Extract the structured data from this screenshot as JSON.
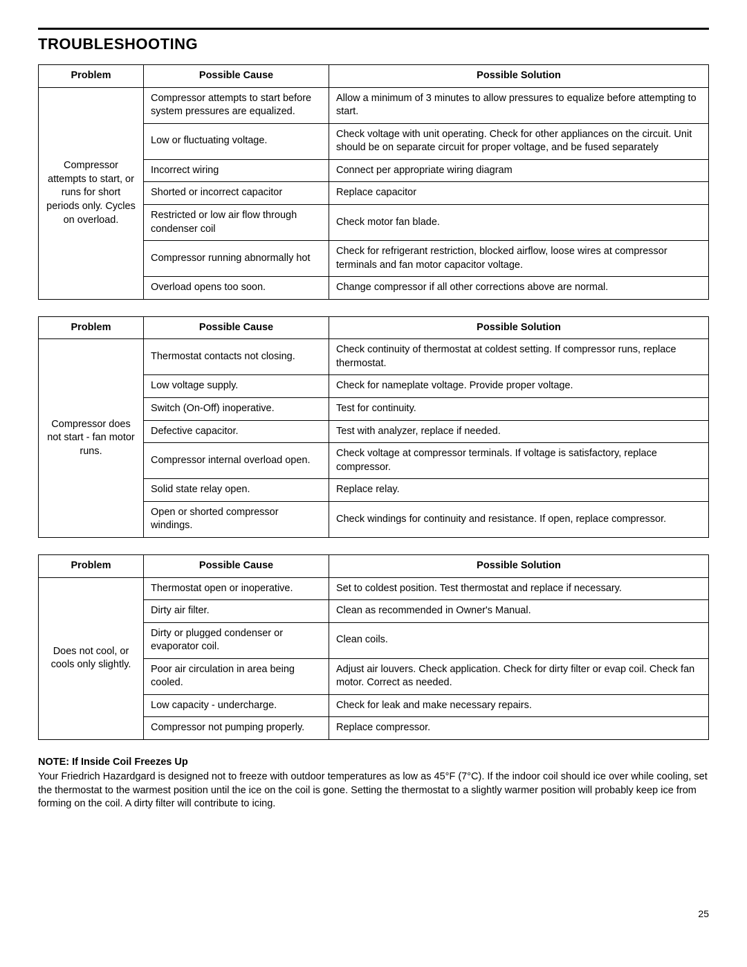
{
  "heading": "TROUBLESHOOTING",
  "columns": {
    "problem": "Problem",
    "cause": "Possible Cause",
    "solution": "Possible Solution"
  },
  "tables": [
    {
      "problem": "Compressor attempts to start, or runs for short periods only. Cycles on overload.",
      "rows": [
        {
          "cause": "Compressor attempts to start before system pressures are equalized.",
          "solution": "Allow a minimum of 3 minutes to allow pressures to equalize before attempting to start."
        },
        {
          "cause": "Low or fluctuating voltage.",
          "solution": "Check voltage with unit operating. Check for other appliances on the circuit. Unit should be on separate circuit for proper voltage, and be fused separately"
        },
        {
          "cause": "Incorrect wiring",
          "solution": "Connect per appropriate wiring diagram"
        },
        {
          "cause": "Shorted or incorrect capacitor",
          "solution": "Replace capacitor"
        },
        {
          "cause": "Restricted or low air flow through condenser coil",
          "solution": "Check motor fan blade."
        },
        {
          "cause": "Compressor running abnormally hot",
          "solution": "Check for refrigerant restriction, blocked airflow, loose wires at compressor terminals  and fan motor capacitor voltage."
        },
        {
          "cause": "Overload opens too soon.",
          "solution": "Change compressor if all other corrections above are normal."
        }
      ]
    },
    {
      "problem": "Compressor does not start - fan motor runs.",
      "rows": [
        {
          "cause": "Thermostat contacts not closing.",
          "solution": "Check continuity of thermostat at coldest setting. If compressor runs, replace thermostat."
        },
        {
          "cause": "Low voltage supply.",
          "solution": "Check for nameplate voltage. Provide proper voltage."
        },
        {
          "cause": "Switch (On-Off) inoperative.",
          "solution": "Test for continuity."
        },
        {
          "cause": "Defective capacitor.",
          "solution": "Test with analyzer, replace if needed."
        },
        {
          "cause": "Compressor internal overload open.",
          "solution": "Check voltage at compressor terminals. If voltage is satisfactory, replace compressor."
        },
        {
          "cause": "Solid state relay open.",
          "solution": "Replace relay."
        },
        {
          "cause": "Open or shorted compressor windings.",
          "solution": "Check windings for continuity and resistance. If open, replace compressor."
        }
      ]
    },
    {
      "problem": "Does not cool, or cools only slightly.",
      "rows": [
        {
          "cause": "Thermostat open or inoperative.",
          "solution": "Set to coldest position. Test thermostat and replace if necessary."
        },
        {
          "cause": "Dirty air filter.",
          "solution": "Clean as recommended in Owner's Manual."
        },
        {
          "cause": "Dirty or plugged condenser or evaporator coil.",
          "solution": "Clean coils."
        },
        {
          "cause": "Poor air circulation in area being cooled.",
          "solution": "Adjust air louvers. Check application. Check for dirty filter or evap coil. Check fan motor. Correct as needed."
        },
        {
          "cause": "Low capacity - undercharge.",
          "solution": "Check for leak and make necessary repairs."
        },
        {
          "cause": "Compressor not pumping properly.",
          "solution": "Replace compressor."
        }
      ]
    }
  ],
  "note": {
    "head": "NOTE: If Inside Coil Freezes Up",
    "body": "Your Friedrich Hazardgard is designed not to freeze with outdoor temperatures as low as 45°F (7°C). If the indoor coil should ice over while cooling, set the thermostat to the warmest position until the ice on the coil is gone. Setting the thermostat to a slightly warmer position will probably keep ice from forming on the coil. A dirty filter will contribute to icing."
  },
  "page_number": "25"
}
